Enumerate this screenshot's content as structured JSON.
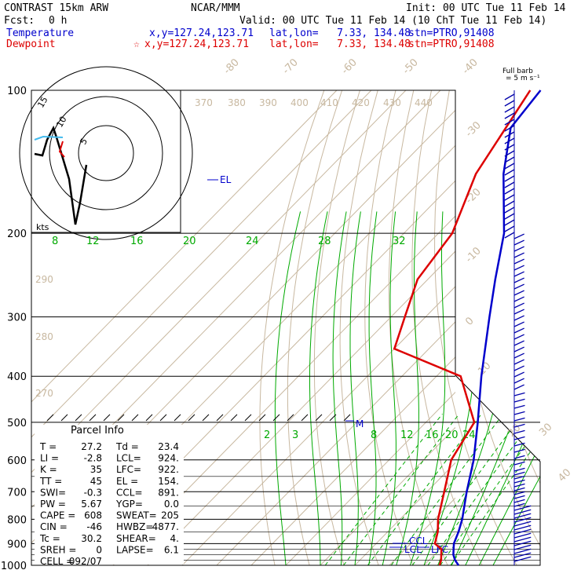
{
  "header": {
    "model": "CONTRAST 15km ARW",
    "org": "NCAR/MMM",
    "init": "Init: 00 UTC Tue 11 Feb 14",
    "fcst_label": "Fcst:",
    "fcst_value": "0 h",
    "valid": "Valid: 00 UTC Tue 11 Feb 14 (10 ChT Tue 11 Feb 14)",
    "temp_label": "Temperature",
    "temp_xy": "x,y=127.24,123.71",
    "temp_latlon": "lat,lon=   7.33, 134.48",
    "temp_stn": "stn=PTRO,91408",
    "dew_label": "Dewpoint",
    "dew_xy": "x,y=127.24,123.71",
    "dew_latlon": "lat,lon=   7.33, 134.48",
    "dew_stn": "stn=PTRO,91408",
    "barb_note_1": "Full barb",
    "barb_note_2": "= 5 m s⁻¹",
    "hodo_units": "kts"
  },
  "colors": {
    "temperature": "#0000cc",
    "dewpoint": "#dd0000",
    "isotherm": "#c8b8a0",
    "mixing_ratio": "#00aa00",
    "wind": "#0000aa"
  },
  "parcel_info": {
    "title": "Parcel Info",
    "rows": [
      [
        "T  =",
        "27.2",
        "Td =",
        "23.4"
      ],
      [
        "LI =",
        "-2.8",
        "LCL=",
        "924."
      ],
      [
        "K  =",
        "35",
        "LFC=",
        "922."
      ],
      [
        "TT =",
        "45",
        "EL =",
        "154."
      ],
      [
        "SWI=",
        "-0.3",
        "CCL=",
        "891."
      ],
      [
        "PW =",
        "5.67",
        "YGP=",
        "0.0"
      ],
      [
        "CAPE =",
        "608",
        "SWEAT=",
        "205"
      ],
      [
        "CIN =",
        "-46",
        "HWBZ=",
        "4877."
      ],
      [
        "Tc =",
        "30.2",
        "SHEAR=",
        "4."
      ],
      [
        "SREH =",
        "0",
        "LAPSE=",
        "6.1"
      ],
      [
        "CELL =",
        "092/07",
        "",
        ""
      ]
    ]
  },
  "chart_data": {
    "type": "skew-t",
    "pressure_ticks": [
      "100",
      "200",
      "300",
      "400",
      "500",
      "600",
      "700",
      "800",
      "900",
      "1000"
    ],
    "isotherm_labels": [
      "-80",
      "-70",
      "-60",
      "-50",
      "-40",
      "-30",
      "-20",
      "-10",
      "0",
      "10",
      "20",
      "30",
      "40"
    ],
    "theta_labels": [
      "370",
      "380",
      "390",
      "400",
      "410",
      "420",
      "430",
      "440",
      "290",
      "280",
      "270"
    ],
    "mixing_ratio_labels_upper": [
      "8",
      "12",
      "16",
      "20",
      "24",
      "28",
      "32"
    ],
    "mixing_ratio_labels_lower": [
      "2",
      "3",
      "8",
      "12",
      "16",
      "20",
      "24"
    ],
    "level_labels": [
      "EL",
      "M",
      "CCL",
      "LCL",
      "LFC"
    ],
    "temperature_profile": [
      [
        1000,
        30
      ],
      [
        975,
        27.5
      ],
      [
        950,
        25.5
      ],
      [
        925,
        24
      ],
      [
        900,
        22.5
      ],
      [
        850,
        20.5
      ],
      [
        800,
        18
      ],
      [
        700,
        11.5
      ],
      [
        600,
        4.5
      ],
      [
        500,
        -5
      ],
      [
        400,
        -17
      ],
      [
        300,
        -31.5
      ],
      [
        250,
        -40.5
      ],
      [
        200,
        -51
      ],
      [
        150,
        -68
      ],
      [
        120,
        -79
      ],
      [
        100,
        -81
      ]
    ],
    "dewpoint_profile": [
      [
        1000,
        24.5
      ],
      [
        975,
        23.5
      ],
      [
        950,
        22
      ],
      [
        925,
        20.5
      ],
      [
        900,
        17
      ],
      [
        850,
        14.5
      ],
      [
        800,
        11
      ],
      [
        700,
        5
      ],
      [
        600,
        -2
      ],
      [
        500,
        -6
      ],
      [
        400,
        -23
      ],
      [
        350,
        -50
      ],
      [
        300,
        -56
      ],
      [
        250,
        -63
      ],
      [
        200,
        -66
      ],
      [
        150,
        -76
      ],
      [
        100,
        -84
      ]
    ]
  }
}
